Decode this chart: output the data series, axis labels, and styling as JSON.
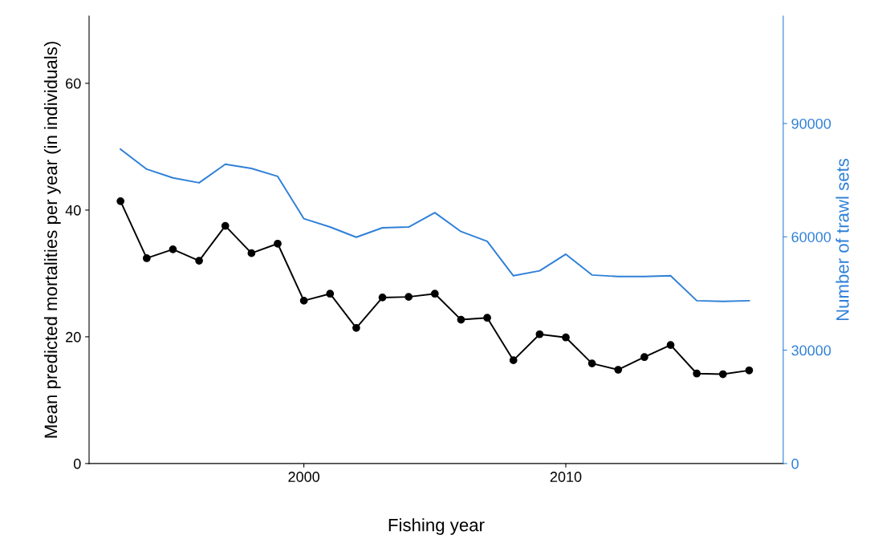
{
  "chart_data": {
    "type": "line",
    "xlabel": "Fishing year",
    "ylabel": "Mean predicted mortalities per year (in individuals)",
    "y2label": "Number of trawl sets",
    "x": [
      1993,
      1994,
      1995,
      1996,
      1997,
      1998,
      1999,
      2000,
      2001,
      2002,
      2003,
      2004,
      2005,
      2006,
      2007,
      2008,
      2009,
      2010,
      2011,
      2012,
      2013,
      2014,
      2015,
      2016,
      2017
    ],
    "series": [
      {
        "color": "#000000",
        "marker": "circle",
        "values": [
          41.4,
          32.4,
          33.8,
          32.0,
          37.5,
          33.2,
          34.7,
          25.7,
          26.8,
          21.4,
          26.2,
          26.3,
          26.8,
          22.7,
          23.0,
          16.3,
          20.4,
          19.9,
          15.8,
          14.8,
          16.8,
          18.7,
          14.2,
          14.1,
          14.7
        ]
      },
      {
        "color": "#2f80d8",
        "axis": "y2",
        "marker": "none",
        "values": [
          83200,
          77900,
          75600,
          74300,
          79200,
          78100,
          76000,
          64800,
          62600,
          59900,
          62400,
          62600,
          66400,
          61400,
          58800,
          49700,
          51000,
          55400,
          49900,
          49500,
          49500,
          49700,
          43100,
          42900,
          43100
        ]
      }
    ],
    "xlim": [
      1991.8,
      2018.3
    ],
    "xticks": [
      2000,
      2010
    ],
    "ylim": [
      0,
      70.6
    ],
    "yticks": [
      0,
      20,
      40,
      60
    ],
    "y2lim": [
      0,
      118400
    ],
    "y2ticks": [
      0,
      30000,
      60000,
      90000
    ],
    "grid": false,
    "legend": false
  }
}
